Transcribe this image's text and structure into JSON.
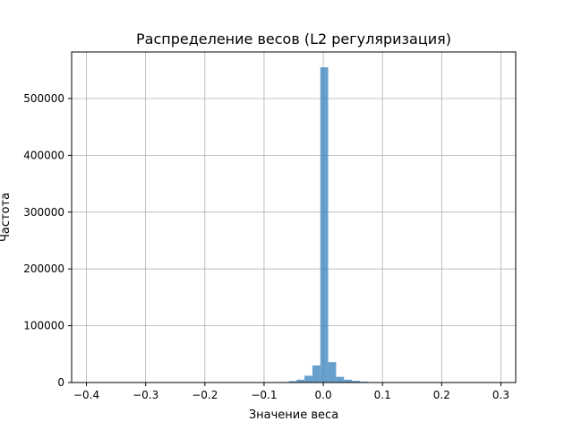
{
  "chart_data": {
    "type": "bar",
    "title": "Распределение весов (L2 регуляризация)",
    "xlabel": "Значение веса",
    "ylabel": "Частота",
    "xlim": [
      -0.425,
      0.325
    ],
    "ylim": [
      0,
      582000
    ],
    "xticks": [
      -0.4,
      -0.3,
      -0.2,
      -0.1,
      0.0,
      0.1,
      0.2,
      0.3
    ],
    "xtick_labels": [
      "−0.4",
      "−0.3",
      "−0.2",
      "−0.1",
      "0.0",
      "0.1",
      "0.2",
      "0.3"
    ],
    "yticks": [
      0,
      100000,
      200000,
      300000,
      400000,
      500000
    ],
    "ytick_labels": [
      "0",
      "100000",
      "200000",
      "300000",
      "400000",
      "500000"
    ],
    "grid": true,
    "bar_color": "#4d8fc4",
    "bins": [
      {
        "x0": -0.0717,
        "x1": -0.0583,
        "value": 800
      },
      {
        "x0": -0.0583,
        "x1": -0.045,
        "value": 2500
      },
      {
        "x0": -0.045,
        "x1": -0.0317,
        "value": 5000
      },
      {
        "x0": -0.0317,
        "x1": -0.0183,
        "value": 12000
      },
      {
        "x0": -0.0183,
        "x1": -0.005,
        "value": 30000
      },
      {
        "x0": -0.005,
        "x1": 0.0083,
        "value": 555000
      },
      {
        "x0": 0.0083,
        "x1": 0.0217,
        "value": 36000
      },
      {
        "x0": 0.0217,
        "x1": 0.035,
        "value": 10000
      },
      {
        "x0": 0.035,
        "x1": 0.0483,
        "value": 5000
      },
      {
        "x0": 0.0483,
        "x1": 0.0617,
        "value": 3000
      },
      {
        "x0": 0.0617,
        "x1": 0.075,
        "value": 1500
      },
      {
        "x0": 0.075,
        "x1": 0.0883,
        "value": 500
      }
    ]
  }
}
